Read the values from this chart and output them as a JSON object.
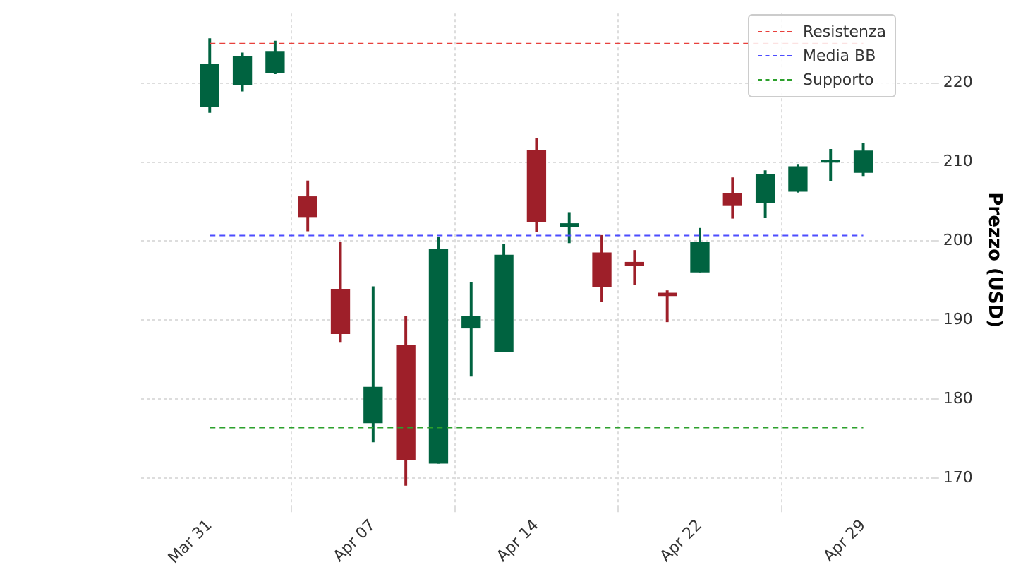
{
  "chart_data": {
    "type": "candlestick",
    "ylabel": "Prezzo (USD)",
    "categories": [
      "Mar 31",
      null,
      null,
      null,
      null,
      "Apr 07",
      null,
      null,
      null,
      null,
      "Apr 14",
      null,
      null,
      null,
      null,
      "Apr 22",
      null,
      null,
      null,
      null,
      "Apr 29"
    ],
    "ohlc": [
      [
        217.0,
        225.6,
        216.3,
        222.4
      ],
      [
        219.8,
        223.8,
        219.0,
        223.3
      ],
      [
        221.3,
        225.3,
        221.2,
        224.0
      ],
      [
        205.6,
        207.6,
        201.3,
        203.1
      ],
      [
        193.9,
        199.8,
        187.2,
        188.3
      ],
      [
        177.0,
        194.2,
        174.6,
        181.5
      ],
      [
        186.8,
        190.4,
        169.1,
        172.3
      ],
      [
        171.9,
        200.5,
        171.9,
        198.9
      ],
      [
        189.0,
        194.7,
        182.9,
        190.5
      ],
      [
        186.0,
        199.6,
        186.0,
        198.2
      ],
      [
        211.5,
        213.0,
        201.2,
        202.5
      ],
      [
        201.8,
        203.6,
        199.8,
        202.2
      ],
      [
        198.5,
        200.7,
        192.4,
        194.2
      ],
      [
        197.3,
        198.8,
        194.5,
        196.9
      ],
      [
        193.4,
        193.7,
        189.8,
        193.1
      ],
      [
        196.1,
        201.6,
        196.1,
        199.8
      ],
      [
        206.0,
        208.0,
        202.9,
        204.5
      ],
      [
        204.9,
        208.9,
        203.0,
        208.4
      ],
      [
        206.3,
        209.7,
        206.2,
        209.4
      ],
      [
        210.0,
        211.6,
        207.6,
        210.2
      ],
      [
        208.7,
        212.3,
        208.3,
        211.4
      ]
    ],
    "colors": [
      "#006340",
      "#006340",
      "#006340",
      "#9e1f29",
      "#9e1f29",
      "#006340",
      "#9e1f29",
      "#006340",
      "#006340",
      "#006340",
      "#9e1f29",
      "#006340",
      "#9e1f29",
      "#9e1f29",
      "#9e1f29",
      "#006340",
      "#9e1f29",
      "#006340",
      "#006340",
      "#006340",
      "#006340"
    ],
    "ylim": [
      166.4,
      228.8
    ],
    "yticks": [
      170,
      180,
      190,
      200,
      210,
      220
    ],
    "ref_lines": [
      {
        "axis": "y",
        "value": 225.0,
        "label": "Resistenza",
        "color": "#e8403c",
        "line_style": "dashed"
      },
      {
        "axis": "y",
        "value": 200.7,
        "label": "Media BB",
        "color": "#4d4dff",
        "line_style": "dashed"
      },
      {
        "axis": "y",
        "value": 176.4,
        "label": "Supporto",
        "color": "#2ca02c",
        "line_style": "dashed"
      }
    ],
    "grid": true,
    "legend": "top right"
  }
}
